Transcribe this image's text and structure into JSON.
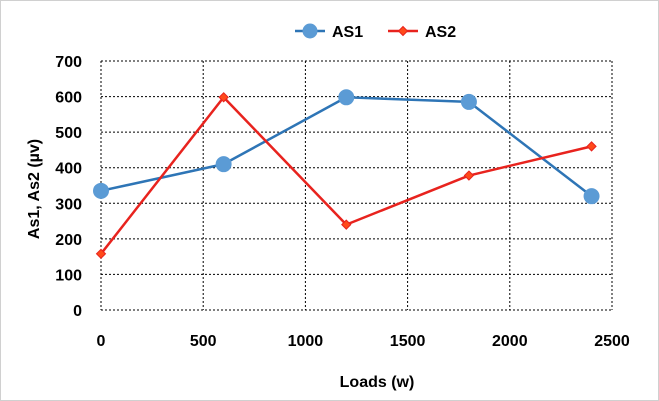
{
  "chart_data": {
    "type": "line",
    "title": "",
    "xlabel": "Loads (w)",
    "ylabel": "As1, As2 (µv)",
    "x": [
      0,
      600,
      1200,
      1800,
      2400
    ],
    "xlim": [
      0,
      2500
    ],
    "ylim": [
      0,
      700
    ],
    "xticks": [
      0,
      500,
      1000,
      1500,
      2000,
      2500
    ],
    "yticks": [
      0,
      100,
      200,
      300,
      400,
      500,
      600,
      700
    ],
    "grid": true,
    "legend_position": "top",
    "series": [
      {
        "name": "AS1",
        "values": [
          335,
          410,
          598,
          585,
          320
        ],
        "color": "#2E75B6",
        "marker_color": "#5B9BD5",
        "marker": "circle"
      },
      {
        "name": "AS2",
        "values": [
          158,
          598,
          240,
          378,
          460
        ],
        "color": "#E8231E",
        "marker_color": "#FF4A1A",
        "marker": "diamond"
      }
    ]
  }
}
